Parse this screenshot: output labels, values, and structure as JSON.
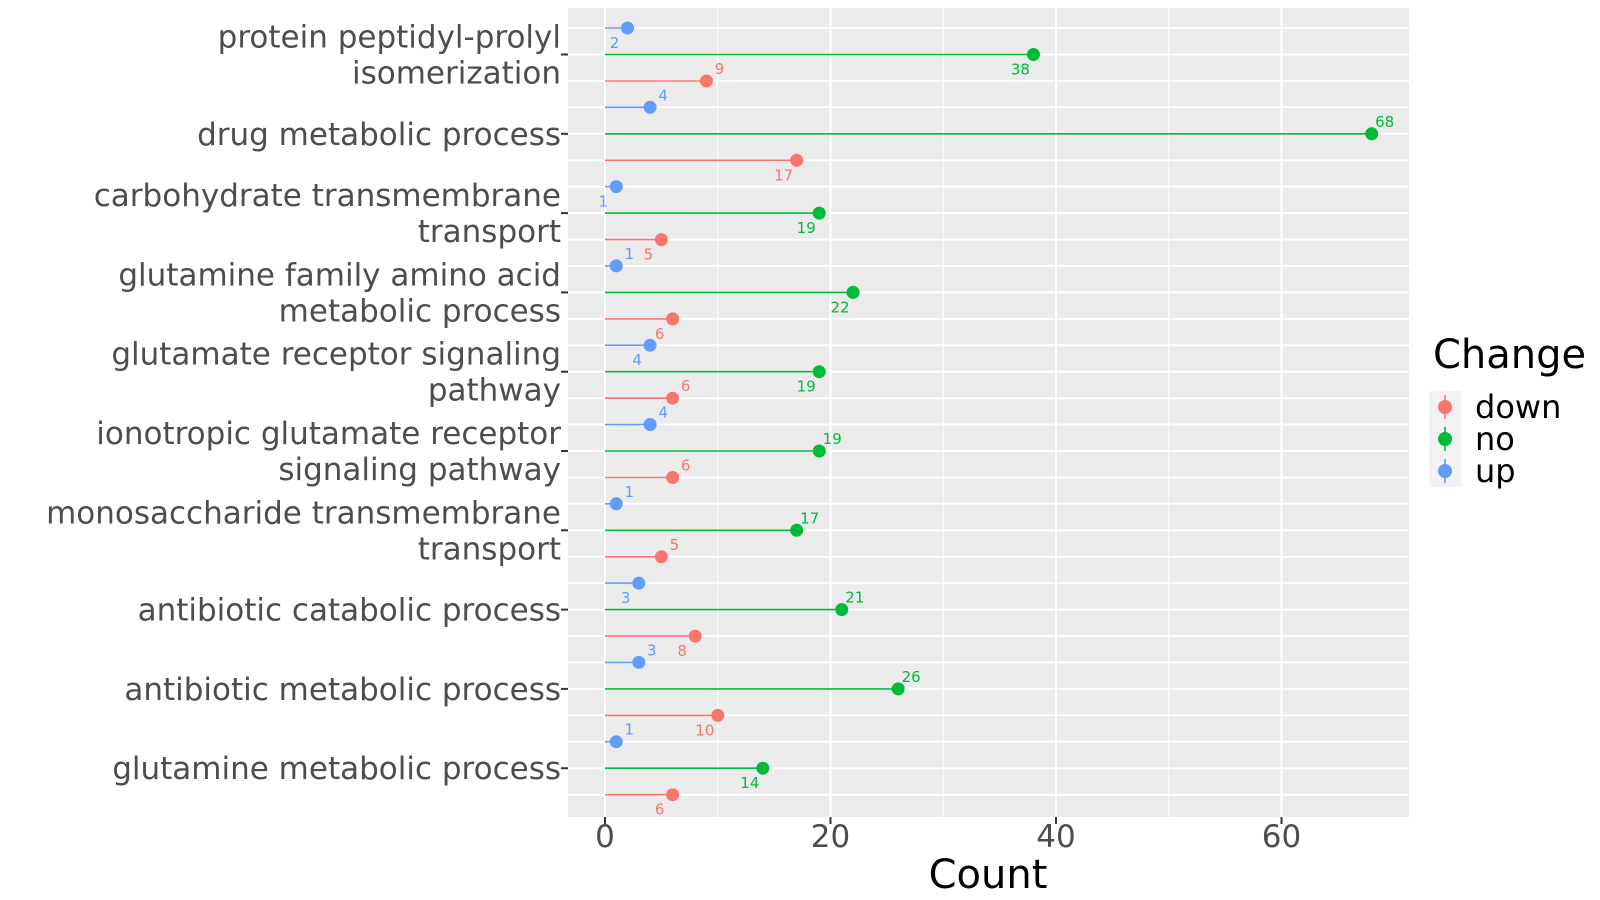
{
  "chart_data": {
    "type": "dot",
    "xlabel": "Count",
    "ylabel": "",
    "xlim": [
      -3.5,
      71.5
    ],
    "x_ticks": [
      0,
      20,
      40,
      60
    ],
    "grid": true,
    "legend": {
      "title": "Change",
      "position": "right",
      "entries": [
        "down",
        "no",
        "up"
      ]
    },
    "colors": {
      "down": "#F8766D",
      "no": "#00BA38",
      "up": "#619CFF"
    },
    "categories": [
      [
        "protein peptidyl-prolyl",
        "isomerization"
      ],
      [
        "drug metabolic process"
      ],
      [
        "carbohydrate transmembrane",
        "transport"
      ],
      [
        "glutamine family amino acid",
        "metabolic process"
      ],
      [
        "glutamate receptor signaling",
        "pathway"
      ],
      [
        "ionotropic glutamate receptor",
        "signaling pathway"
      ],
      [
        "monosaccharide transmembrane",
        "transport"
      ],
      [
        "antibiotic catabolic process"
      ],
      [
        "antibiotic metabolic process"
      ],
      [
        "glutamine metabolic process"
      ]
    ],
    "series": [
      {
        "name": "down",
        "values": [
          9,
          17,
          5,
          6,
          6,
          6,
          5,
          8,
          10,
          6
        ]
      },
      {
        "name": "no",
        "values": [
          38,
          68,
          19,
          22,
          19,
          19,
          17,
          21,
          26,
          14
        ]
      },
      {
        "name": "up",
        "values": [
          2,
          4,
          1,
          1,
          4,
          4,
          1,
          3,
          3,
          1
        ]
      }
    ]
  }
}
